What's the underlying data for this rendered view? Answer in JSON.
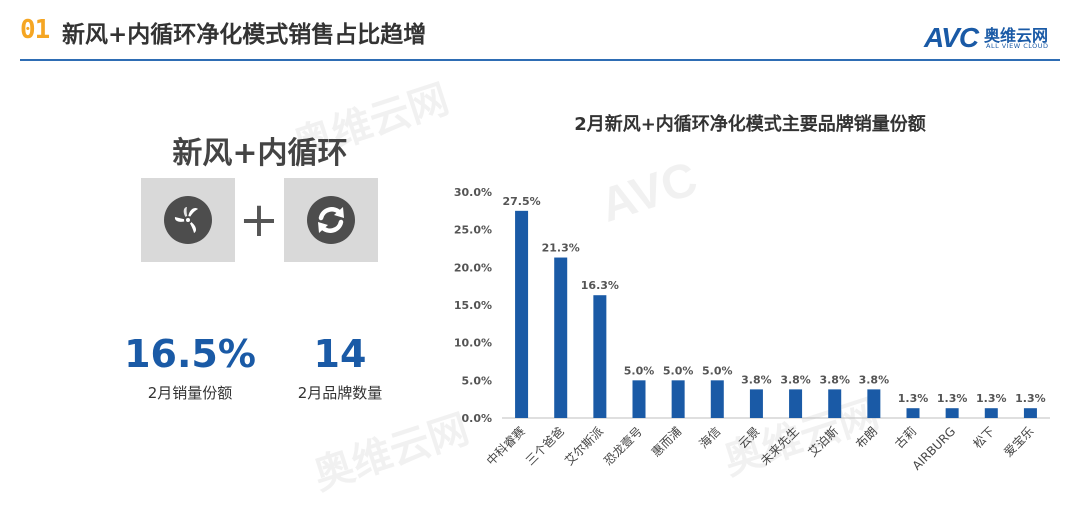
{
  "header": {
    "badge": "01",
    "title": "新风+内循环净化模式销售占比趋增",
    "logo": {
      "mark": "AVC",
      "name_cn": "奥维云网",
      "name_en": "ALL VIEW CLOUD"
    },
    "colors": {
      "accent": "#f5a623",
      "brand": "#1a5aa6",
      "rule": "#2e6db4"
    }
  },
  "left_panel": {
    "title": "新风+内循环",
    "icons": [
      "fan-icon",
      "recycle-icon"
    ],
    "operator": "+",
    "stats": [
      {
        "value": "16.5%",
        "label": "2月销量份额"
      },
      {
        "value": "14",
        "label": "2月品牌数量"
      }
    ]
  },
  "watermark": {
    "mark": "AVC",
    "name_cn": "奥维云网",
    "name_en": "ALL VIEW CLOUD"
  },
  "chart_data": {
    "type": "bar",
    "title": "2月新风+内循环净化模式主要品牌销量份额",
    "categories": [
      "中科睿赛",
      "三个爸爸",
      "艾尔斯派",
      "恐龙壹号",
      "惠而浦",
      "海信",
      "云景",
      "未来先生",
      "艾泊斯",
      "布朗",
      "古莉",
      "AIRBURG",
      "松下",
      "爱宝乐"
    ],
    "values": [
      27.5,
      21.3,
      16.3,
      5.0,
      5.0,
      5.0,
      3.8,
      3.8,
      3.8,
      3.8,
      1.3,
      1.3,
      1.3,
      1.3
    ],
    "data_labels": [
      "27.5%",
      "21.3%",
      "16.3%",
      "5.0%",
      "5.0%",
      "5.0%",
      "3.8%",
      "3.8%",
      "3.8%",
      "3.8%",
      "1.3%",
      "1.3%",
      "1.3%",
      "1.3%"
    ],
    "y_ticks": [
      "0.0%",
      "5.0%",
      "10.0%",
      "15.0%",
      "20.0%",
      "25.0%",
      "30.0%"
    ],
    "ylim": [
      0,
      30
    ],
    "xlabel": "",
    "ylabel": "",
    "grid": false,
    "legend": false,
    "bar_color": "#1a5aa6"
  }
}
